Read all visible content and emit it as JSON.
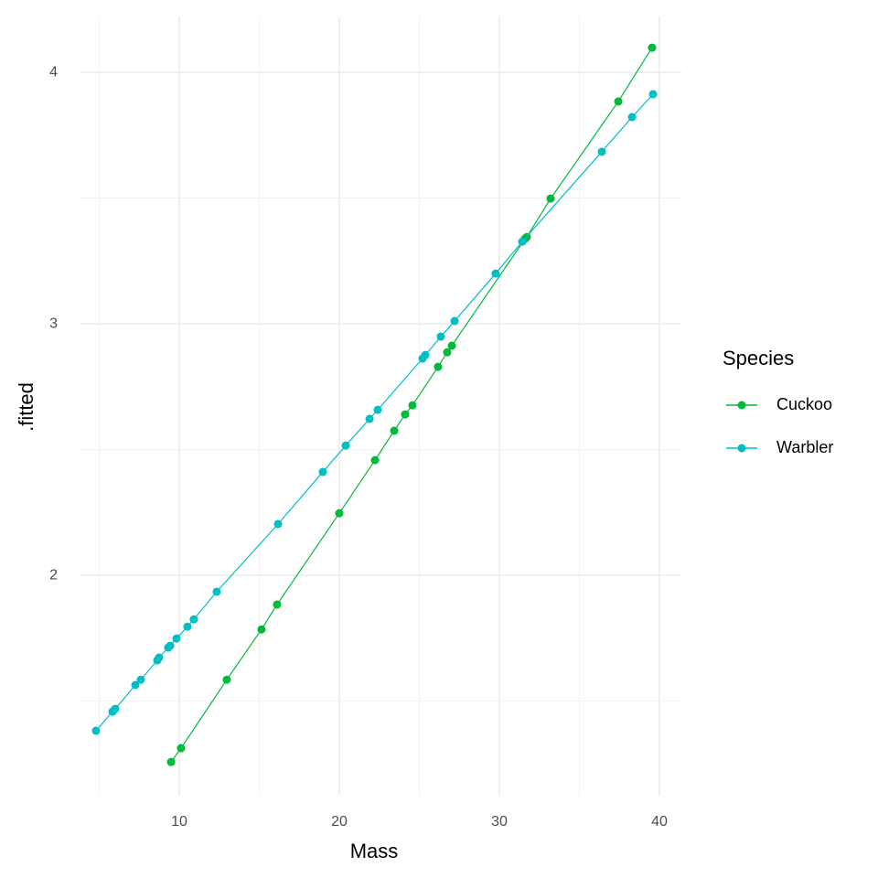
{
  "chart_data": {
    "type": "line",
    "xlabel": "Mass",
    "ylabel": ".fitted",
    "legend_title": "Species",
    "legend": "right",
    "grid": true,
    "xlim": [
      3.83,
      41.37
    ],
    "xticks": [
      10,
      20,
      30,
      40
    ],
    "x_minor_ticks": [
      5,
      15,
      25,
      35
    ],
    "ylim": [
      1.124,
      4.222
    ],
    "yticks": [
      2,
      3,
      4
    ],
    "y_minor_ticks": [
      1.5,
      2.5,
      3.5
    ],
    "series": [
      {
        "name": "Cuckoo",
        "color": "#00BA38",
        "x": [
          9.49,
          10.11,
          12.97,
          15.14,
          16.11,
          20.0,
          22.23,
          23.43,
          24.11,
          24.57,
          26.17,
          26.74,
          27.03,
          31.6,
          31.71,
          33.2,
          37.43,
          39.54
        ],
        "values": [
          1.258,
          1.313,
          1.585,
          1.785,
          1.884,
          2.247,
          2.458,
          2.575,
          2.64,
          2.676,
          2.829,
          2.887,
          2.913,
          3.338,
          3.345,
          3.498,
          3.884,
          4.098
        ]
      },
      {
        "name": "Warbler",
        "color": "#00BFC4",
        "x": [
          4.8,
          5.83,
          6.0,
          7.26,
          7.6,
          8.63,
          8.74,
          9.31,
          9.43,
          9.83,
          10.51,
          10.91,
          12.34,
          16.17,
          18.97,
          20.4,
          21.89,
          22.4,
          25.2,
          25.37,
          26.34,
          27.2,
          29.77,
          31.43,
          36.4,
          38.29,
          39.6
        ],
        "values": [
          1.382,
          1.458,
          1.469,
          1.564,
          1.585,
          1.662,
          1.673,
          1.713,
          1.72,
          1.749,
          1.796,
          1.825,
          1.935,
          2.204,
          2.411,
          2.516,
          2.622,
          2.658,
          2.862,
          2.876,
          2.949,
          3.011,
          3.2,
          3.327,
          3.684,
          3.822,
          3.913
        ]
      }
    ]
  }
}
